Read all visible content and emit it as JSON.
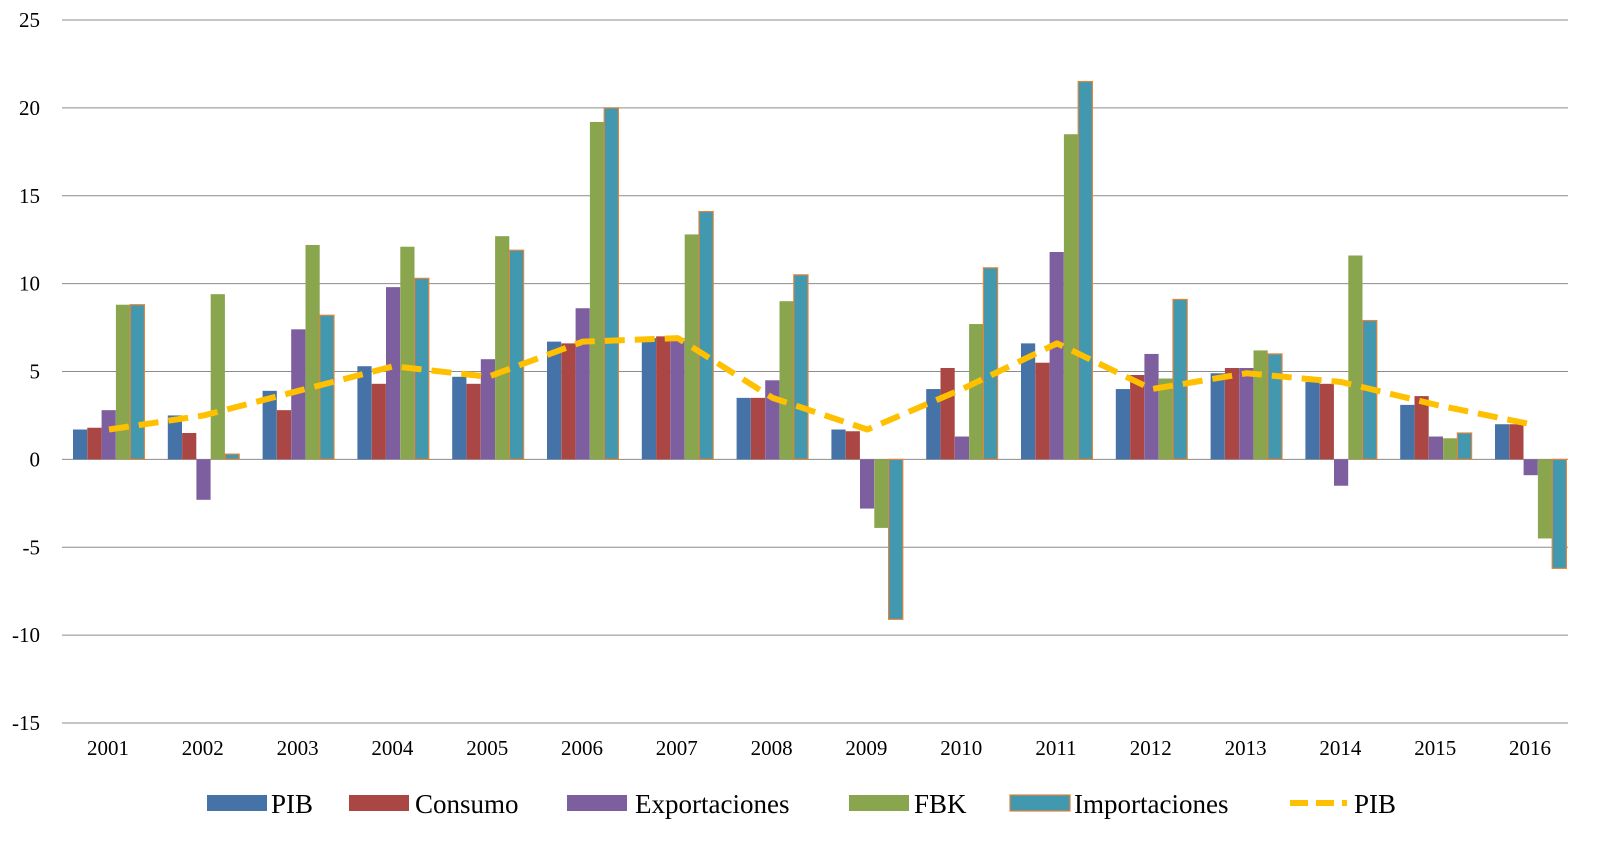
{
  "chart_data": {
    "type": "bar",
    "categories": [
      "2001",
      "2002",
      "2003",
      "2004",
      "2005",
      "2006",
      "2007",
      "2008",
      "2009",
      "2010",
      "2011",
      "2012",
      "2013",
      "2014",
      "2015",
      "2016"
    ],
    "ylim": [
      -15,
      25
    ],
    "yticks": [
      -15,
      -10,
      -5,
      0,
      5,
      10,
      15,
      20,
      25
    ],
    "ytick_labels": [
      "-15",
      "-10",
      "-5",
      "0",
      "5",
      "10",
      "15",
      "20",
      "25"
    ],
    "grid": true,
    "legend_position": "bottom",
    "series": [
      {
        "name": "PIB",
        "kind": "bar",
        "color": "#4572a7",
        "values": [
          1.7,
          2.5,
          3.9,
          5.3,
          4.7,
          6.7,
          6.9,
          3.5,
          1.7,
          4.0,
          6.6,
          4.0,
          4.9,
          4.4,
          3.1,
          2.0
        ]
      },
      {
        "name": "Consumo",
        "kind": "bar",
        "color": "#aa4643",
        "values": [
          1.8,
          1.5,
          2.8,
          4.3,
          4.3,
          6.6,
          7.0,
          3.5,
          1.6,
          5.2,
          5.5,
          4.8,
          5.2,
          4.3,
          3.6,
          2.0
        ]
      },
      {
        "name": "Exportaciones",
        "kind": "bar",
        "color": "#7d5fa0",
        "values": [
          2.8,
          -2.3,
          7.4,
          9.8,
          5.7,
          8.6,
          6.9,
          4.5,
          -2.8,
          1.3,
          11.8,
          6.0,
          5.2,
          -1.5,
          1.3,
          -0.9
        ]
      },
      {
        "name": "FBK",
        "kind": "bar",
        "color": "#89a54e",
        "values": [
          8.8,
          9.4,
          12.2,
          12.1,
          12.7,
          19.2,
          12.8,
          9.0,
          -3.9,
          7.7,
          18.5,
          4.6,
          6.2,
          11.6,
          1.2,
          -4.5
        ]
      },
      {
        "name": "Importaciones",
        "kind": "bar",
        "color": "#4198af",
        "values": [
          8.8,
          0.3,
          8.2,
          10.3,
          11.9,
          20.0,
          14.1,
          10.5,
          -9.1,
          10.9,
          21.5,
          9.1,
          6.0,
          7.9,
          1.5,
          -6.2
        ]
      },
      {
        "name": "PIB",
        "kind": "line",
        "color": "#ffc000",
        "values": [
          1.7,
          2.5,
          3.9,
          5.3,
          4.7,
          6.7,
          6.9,
          3.5,
          1.7,
          4.0,
          6.6,
          4.0,
          4.9,
          4.4,
          3.1,
          2.0
        ]
      }
    ]
  }
}
